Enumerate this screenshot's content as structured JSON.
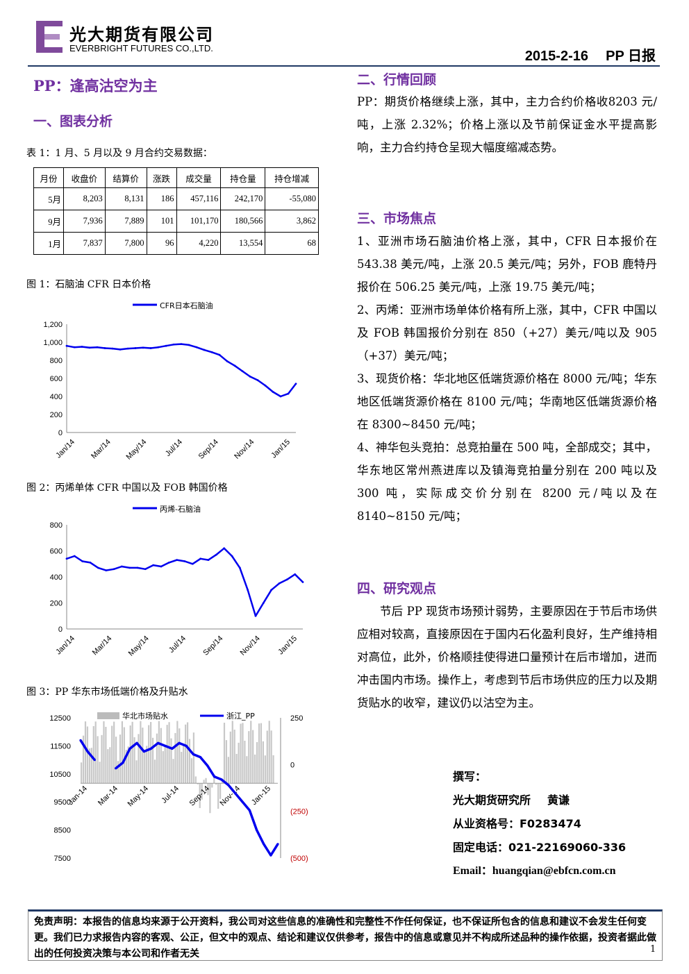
{
  "header": {
    "company_cn": "光大期货有限公司",
    "company_en": "EVERBRIGHT FUTURES CO.,LTD.",
    "date": "2015-2-16",
    "report": "PP 日报"
  },
  "title": "PP：逢高沽空为主",
  "section1": "一、图表分析",
  "table1": {
    "caption": "表 1：1 月、5 月以及 9 月合约交易数据：",
    "headers": [
      "月份",
      "收盘价",
      "结算价",
      "涨跌",
      "成交量",
      "持仓量",
      "持仓增减"
    ],
    "rows": [
      [
        "5月",
        "8,203",
        "8,131",
        "186",
        "457,116",
        "242,170",
        "-55,080"
      ],
      [
        "9月",
        "7,936",
        "7,889",
        "101",
        "101,170",
        "180,566",
        "3,862"
      ],
      [
        "1月",
        "7,837",
        "7,800",
        "96",
        "4,220",
        "13,554",
        "68"
      ]
    ]
  },
  "fig1": {
    "caption": "图 1：石脑油 CFR 日本价格"
  },
  "fig2": {
    "caption": "图 2：丙烯单体 CFR 中国以及 FOB 韩国价格"
  },
  "fig3": {
    "caption": "图 3：PP 华东市场低端价格及升贴水"
  },
  "chart_data": [
    {
      "type": "line",
      "legend": [
        "CFR日本石脑油"
      ],
      "x_ticks": [
        "Jan/14",
        "Mar/14",
        "May/14",
        "Jul/14",
        "Sep/14",
        "Nov/14",
        "Jan/15"
      ],
      "y_ticks": [
        "0",
        "200",
        "400",
        "600",
        "800",
        "1,000",
        "1,200"
      ],
      "ylim": [
        0,
        1200
      ],
      "series": [
        {
          "name": "CFR日本石脑油",
          "color": "#0000ee",
          "x": [
            0,
            10,
            20,
            30,
            40,
            50,
            60,
            70,
            80,
            90,
            100,
            110,
            120,
            130,
            140,
            150,
            160,
            170,
            180,
            190,
            200,
            210,
            220,
            230,
            240,
            250,
            260,
            270,
            280,
            290,
            300
          ],
          "values": [
            960,
            945,
            950,
            940,
            945,
            935,
            930,
            920,
            930,
            935,
            940,
            935,
            945,
            960,
            975,
            980,
            970,
            945,
            915,
            890,
            860,
            790,
            740,
            680,
            620,
            580,
            520,
            450,
            400,
            430,
            540
          ]
        }
      ]
    },
    {
      "type": "line",
      "legend": [
        "丙烯-石脑油"
      ],
      "x_ticks": [
        "Jan/14",
        "Mar/14",
        "May/14",
        "Jul/14",
        "Sep/14",
        "Nov/14",
        "Jan/15"
      ],
      "y_ticks": [
        "0",
        "200",
        "400",
        "600",
        "800"
      ],
      "ylim": [
        0,
        800
      ],
      "series": [
        {
          "name": "丙烯-石脑油",
          "color": "#0000ee",
          "x": [
            0,
            10,
            20,
            30,
            40,
            50,
            60,
            70,
            80,
            90,
            100,
            110,
            120,
            130,
            140,
            150,
            160,
            170,
            180,
            190,
            200,
            210,
            220,
            230,
            240,
            250,
            260,
            270,
            280,
            290,
            300
          ],
          "values": [
            540,
            560,
            520,
            510,
            470,
            450,
            460,
            480,
            470,
            470,
            460,
            490,
            480,
            510,
            530,
            520,
            500,
            540,
            530,
            570,
            620,
            560,
            470,
            300,
            100,
            200,
            300,
            350,
            380,
            420,
            360
          ]
        }
      ]
    },
    {
      "type": "line",
      "legend": [
        "华北市场贴水",
        "浙江_PP"
      ],
      "x_ticks": [
        "Jan-14",
        "Mar-14",
        "May-14",
        "Jul-14",
        "Sep-14",
        "Nov-14",
        "Jan-15"
      ],
      "y_ticks_left": [
        "7500",
        "8500",
        "9500",
        "10500",
        "11500",
        "12500"
      ],
      "y_ticks_right": [
        "(500)",
        "(250)",
        "0",
        "250"
      ],
      "ylim": [
        7500,
        12500
      ],
      "series": [
        {
          "name": "浙江_PP",
          "color": "#0000ee",
          "x": [
            0,
            10,
            20,
            30,
            40,
            50,
            60,
            70,
            80,
            90,
            100,
            110,
            120,
            130,
            140,
            150,
            160,
            170,
            180,
            190,
            200,
            210,
            220,
            230,
            240,
            250,
            260,
            270,
            280
          ],
          "values": [
            11700,
            11300,
            11000,
            null,
            null,
            10700,
            10900,
            11400,
            11600,
            11300,
            11400,
            11600,
            11500,
            11400,
            11600,
            11500,
            11200,
            11100,
            10800,
            10400,
            10300,
            10100,
            9800,
            9500,
            9200,
            8500,
            8000,
            7600,
            8000
          ]
        },
        {
          "name": "华北市场贴水",
          "color": "#bbbbbb",
          "type": "bar"
        }
      ]
    }
  ],
  "section2": "二、行情回顾",
  "review": "PP：期货价格继续上涨，其中，主力合约价格收8203 元/吨，上涨 2.32%；价格上涨以及节前保证金水平提高影响，主力合约持仓呈现大幅度缩减态势。",
  "section3": "三、市场焦点",
  "focus": [
    "1、亚洲市场石脑油价格上涨，其中，CFR 日本报价在 543.38 美元/吨，上涨 20.5 美元/吨；另外，FOB 鹿特丹报价在 506.25 美元/吨，上涨 19.75 美元/吨；",
    "2、丙烯：亚洲市场单体价格有所上涨，其中，CFR 中国以及 FOB 韩国报价分别在 850（+27）美元/吨以及 905（+37）美元/吨；",
    "3、现货价格：华北地区低端货源价格在 8000 元/吨；华东地区低端货源价格在 8100 元/吨；华南地区低端货源价格在 8300~8450 元/吨；",
    "4、神华包头竞拍：总竞拍量在 500 吨，全部成交；其中，华东地区常州燕进库以及镇海竞拍量分别在 200 吨以及 300 吨，实际成交价分别在 8200 元/吨以及在 8140~8150 元/吨；"
  ],
  "section4": "四、研究观点",
  "opinion": "节后 PP 现货市场预计弱势，主要原因在于节后市场供应相对较高，直接原因在于国内石化盈利良好，生产维持相对高位，此外，价格顺挂使得进口量预计在后市增加，进而冲击国内市场。操作上，考虑到节后市场供应的压力以及期货贴水的收窄，建议仍以沽空为主。",
  "author": {
    "label": "撰写：",
    "org": "光大期货研究所",
    "name": "黄谦",
    "cert": "从业资格号：F0283474",
    "phone": "固定电话：021-22169060-336",
    "email": "Email：huangqian@ebfcn.com.cn"
  },
  "footer": {
    "disclaimer": "免责声明：本报告的信息均来源于公开资料，我公司对这些信息的准确性和完整性不作任何保证，也不保证所包含的信息和建议不会发生任何变更。我们已力求报告内容的客观、公正，但文中的观点、结论和建议仅供参考，报告中的信息或意见并不构成所述品种的操作依据，投资者据此做出的任何投资决策与本公司和作者无关",
    "page": "1"
  }
}
